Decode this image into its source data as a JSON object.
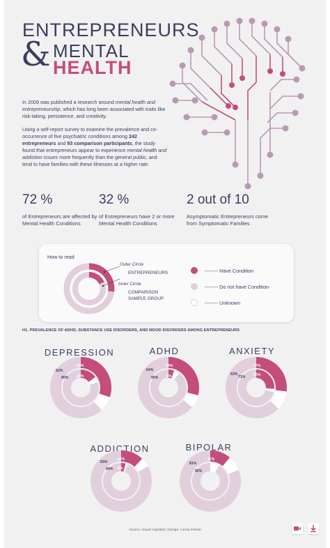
{
  "title": {
    "line1": "ENTREPRENEURS",
    "amp": "&",
    "line2": "MENTAL",
    "line3": "HEALTH"
  },
  "intro": {
    "p1_a": "In 2009 was published a research around ",
    "p1_em": "mental health and entrepreneurship",
    "p1_b": ", which has long been associated with traits like risk-taking, persistence, and creativity.",
    "p2_a": "Using a self-report survey to examine the prevalence and co-occurrence of five psychiatric conditions among ",
    "p2_b1": "242 entrepreneurs",
    "p2_c": " and ",
    "p2_b2": "93 comparison participants",
    "p2_d": ", the study found that  entrepreneurs appear to experience ",
    "p2_em": "mental health and addiction issues",
    "p2_e": " more frequently than the general public, and tend to have families with these illnesses at a higher rate."
  },
  "stats": [
    {
      "big": "72 %",
      "small": "of Entrepreneurs are affected by Mental Health Conditions"
    },
    {
      "big": "32 %",
      "small": "of Entrepreneurs have 2 or more Mental Health Conditions"
    },
    {
      "big": "2 out of 10",
      "small": "Asymptomatic Entrepreneurs come from Symptomatic Families"
    }
  ],
  "howto": {
    "title": "How to read",
    "outer_label": "Outer Circle",
    "outer_value": "ENTREPRENEURS",
    "inner_label": "Inner Circle",
    "inner_value1": "COMPARISON",
    "inner_value2": "SAMPLE GROUP",
    "legend": [
      {
        "label": "Have Condition",
        "color": "#c44d7b"
      },
      {
        "label": "Do not have Condition",
        "color": "#e2cfdc"
      },
      {
        "label": "Unknown",
        "color": "#ffffff"
      }
    ]
  },
  "section_title": "H1. PREVALENCE OF ADHD, SUBSTANCE USE DISORDERS, AND MOOD DISORDERS AMONG ENTREPRENEURS",
  "colors": {
    "accent": "#c44d7b",
    "light": "#e2cfdc",
    "dark": "#3a3e5e",
    "bg": "#f2f1f2"
  },
  "chart_data": [
    {
      "type": "pie",
      "name": "DEPRESSION",
      "outer": {
        "have": 30,
        "not": 62
      },
      "inner": {
        "have": 15,
        "not": 80
      }
    },
    {
      "type": "pie",
      "name": "ADHD",
      "outer": {
        "have": 29,
        "not": 64
      },
      "inner": {
        "have": 5,
        "not": 90
      }
    },
    {
      "type": "pie",
      "name": "ANXIETY",
      "outer": {
        "have": 27,
        "not": 63
      },
      "inner": {
        "have": 26,
        "not": 71
      }
    },
    {
      "type": "pie",
      "name": "ADDICTION",
      "outer": {
        "have": 12,
        "not": 83
      },
      "inner": {
        "have": 4,
        "not": 94
      }
    },
    {
      "type": "pie",
      "name": "BIPOLAR",
      "outer": {
        "have": 11,
        "not": 81
      },
      "inner": {
        "have": null,
        "not": 92
      }
    }
  ],
  "labels": {
    "depression": {
      "o_have": "30%",
      "o_not": "62%",
      "i_have": "15%",
      "i_not": "80%"
    },
    "adhd": {
      "o_have": "29%",
      "o_not": "64%",
      "i_have": "5%",
      "i_not": "90%"
    },
    "anxiety": {
      "o_have": "27%",
      "o_not": "63%",
      "i_have": "26%",
      "i_not": "71%"
    },
    "addiction": {
      "o_have": "12%",
      "o_not": "83%",
      "i_have": "4%",
      "i_not": "94%"
    },
    "bipolar": {
      "o_have": "11%",
      "o_not": "81%",
      "i_not": "92%"
    }
  },
  "footer": {
    "source": "Source: Visual Capitalist | Design: Loreta Ferhati"
  }
}
